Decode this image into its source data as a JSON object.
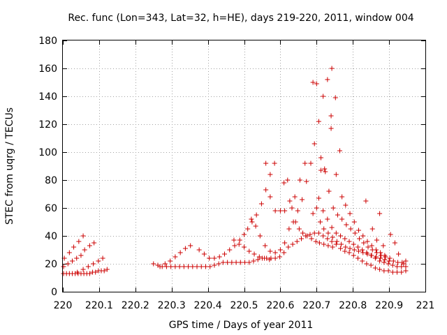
{
  "chart_data": {
    "type": "scatter",
    "title": "Rec. func (Lon=343, Lat=32, h=HE), days 219-220, 2011, window 004",
    "xlabel": "GPS time / Days of year 2011",
    "ylabel": "STEC from uqrg / TECUs",
    "xlim": [
      220,
      221
    ],
    "ylim": [
      0,
      180
    ],
    "x_ticks": [
      220,
      220.1,
      220.2,
      220.3,
      220.4,
      220.5,
      220.6,
      220.7,
      220.8,
      220.9,
      221
    ],
    "x_tick_labels": [
      "220",
      "220.1",
      "220.2",
      "220.3",
      "220.4",
      "220.5",
      "220.6",
      "220.7",
      "220.8",
      "220.9",
      "221"
    ],
    "y_ticks": [
      0,
      20,
      40,
      60,
      80,
      100,
      120,
      140,
      160,
      180
    ],
    "y_tick_labels": [
      "0",
      "20",
      "40",
      "60",
      "80",
      "100",
      "120",
      "140",
      "160",
      "180"
    ],
    "grid": true,
    "marker": "plus",
    "color": "#cc0000",
    "points": [
      [
        220.002,
        13
      ],
      [
        220.01,
        13
      ],
      [
        220.018,
        13
      ],
      [
        220.026,
        13
      ],
      [
        220.034,
        13
      ],
      [
        220.042,
        13
      ],
      [
        220.05,
        13
      ],
      [
        220.058,
        13
      ],
      [
        220.066,
        13
      ],
      [
        220.074,
        13
      ],
      [
        220.082,
        14
      ],
      [
        220.09,
        14
      ],
      [
        220.098,
        15
      ],
      [
        220.106,
        15
      ],
      [
        220.114,
        15
      ],
      [
        220.122,
        16
      ],
      [
        220.002,
        18
      ],
      [
        220.014,
        20
      ],
      [
        220.026,
        22
      ],
      [
        220.038,
        24
      ],
      [
        220.05,
        26
      ],
      [
        220.06,
        30
      ],
      [
        220.074,
        33
      ],
      [
        220.086,
        35
      ],
      [
        220.004,
        24
      ],
      [
        220.018,
        28
      ],
      [
        220.03,
        32
      ],
      [
        220.044,
        36
      ],
      [
        220.056,
        40
      ],
      [
        220.04,
        14
      ],
      [
        220.056,
        16
      ],
      [
        220.07,
        18
      ],
      [
        220.084,
        20
      ],
      [
        220.098,
        22
      ],
      [
        220.11,
        24
      ],
      [
        220.25,
        20
      ],
      [
        220.262,
        19
      ],
      [
        220.274,
        18
      ],
      [
        220.286,
        18
      ],
      [
        220.298,
        18
      ],
      [
        220.31,
        18
      ],
      [
        220.322,
        18
      ],
      [
        220.334,
        18
      ],
      [
        220.346,
        18
      ],
      [
        220.358,
        18
      ],
      [
        220.37,
        18
      ],
      [
        220.382,
        18
      ],
      [
        220.394,
        18
      ],
      [
        220.406,
        18
      ],
      [
        220.418,
        19
      ],
      [
        220.43,
        20
      ],
      [
        220.442,
        21
      ],
      [
        220.454,
        21
      ],
      [
        220.466,
        21
      ],
      [
        220.478,
        21
      ],
      [
        220.49,
        21
      ],
      [
        220.502,
        21
      ],
      [
        220.514,
        21
      ],
      [
        220.526,
        22
      ],
      [
        220.538,
        23
      ],
      [
        220.55,
        24
      ],
      [
        220.562,
        24
      ],
      [
        220.574,
        24
      ],
      [
        220.586,
        24
      ],
      [
        220.598,
        25
      ],
      [
        220.61,
        28
      ],
      [
        220.622,
        32
      ],
      [
        220.634,
        34
      ],
      [
        220.646,
        36
      ],
      [
        220.658,
        38
      ],
      [
        220.67,
        40
      ],
      [
        220.682,
        41
      ],
      [
        220.694,
        42
      ],
      [
        220.706,
        42
      ],
      [
        220.718,
        40
      ],
      [
        220.73,
        38
      ],
      [
        220.742,
        36
      ],
      [
        220.754,
        34
      ],
      [
        220.766,
        31
      ],
      [
        220.778,
        29
      ],
      [
        220.79,
        28
      ],
      [
        220.802,
        26
      ],
      [
        220.814,
        24
      ],
      [
        220.826,
        22
      ],
      [
        220.838,
        20
      ],
      [
        220.85,
        19
      ],
      [
        220.862,
        17
      ],
      [
        220.874,
        16
      ],
      [
        220.886,
        15
      ],
      [
        220.898,
        15
      ],
      [
        220.91,
        14
      ],
      [
        220.922,
        14
      ],
      [
        220.934,
        14
      ],
      [
        220.946,
        15
      ],
      [
        220.268,
        18
      ],
      [
        220.282,
        20
      ],
      [
        220.296,
        22
      ],
      [
        220.31,
        25
      ],
      [
        220.324,
        28
      ],
      [
        220.338,
        31
      ],
      [
        220.352,
        33
      ],
      [
        220.376,
        30
      ],
      [
        220.39,
        27
      ],
      [
        220.404,
        24
      ],
      [
        220.418,
        24
      ],
      [
        220.432,
        25
      ],
      [
        220.446,
        27
      ],
      [
        220.46,
        30
      ],
      [
        220.474,
        33
      ],
      [
        220.488,
        37
      ],
      [
        220.5,
        41
      ],
      [
        220.51,
        45
      ],
      [
        220.522,
        50
      ],
      [
        220.534,
        55
      ],
      [
        220.548,
        63
      ],
      [
        220.56,
        73
      ],
      [
        220.572,
        84
      ],
      [
        220.584,
        92
      ],
      [
        220.472,
        37
      ],
      [
        220.486,
        34
      ],
      [
        220.5,
        32
      ],
      [
        220.514,
        29
      ],
      [
        220.528,
        27
      ],
      [
        220.542,
        25
      ],
      [
        220.556,
        24
      ],
      [
        220.57,
        23
      ],
      [
        220.52,
        52
      ],
      [
        220.532,
        47
      ],
      [
        220.544,
        40
      ],
      [
        220.558,
        33
      ],
      [
        220.572,
        29
      ],
      [
        220.586,
        28
      ],
      [
        220.6,
        30
      ],
      [
        220.612,
        35
      ],
      [
        220.624,
        45
      ],
      [
        220.636,
        50
      ],
      [
        220.648,
        58
      ],
      [
        220.66,
        66
      ],
      [
        220.672,
        79
      ],
      [
        220.684,
        92
      ],
      [
        220.694,
        106
      ],
      [
        220.706,
        122
      ],
      [
        220.718,
        140
      ],
      [
        220.73,
        152
      ],
      [
        220.742,
        160
      ],
      [
        220.56,
        92
      ],
      [
        220.572,
        68
      ],
      [
        220.586,
        58
      ],
      [
        220.6,
        58
      ],
      [
        220.612,
        58
      ],
      [
        220.626,
        65
      ],
      [
        220.64,
        68
      ],
      [
        220.654,
        80
      ],
      [
        220.668,
        92
      ],
      [
        220.61,
        78
      ],
      [
        220.62,
        80
      ],
      [
        220.632,
        60
      ],
      [
        220.642,
        50
      ],
      [
        220.652,
        45
      ],
      [
        220.662,
        42
      ],
      [
        220.674,
        40
      ],
      [
        220.686,
        38
      ],
      [
        220.698,
        36
      ],
      [
        220.708,
        35
      ],
      [
        220.72,
        34
      ],
      [
        220.732,
        33
      ],
      [
        220.744,
        32
      ],
      [
        220.69,
        150
      ],
      [
        220.7,
        149
      ],
      [
        220.712,
        96
      ],
      [
        220.722,
        88
      ],
      [
        220.734,
        72
      ],
      [
        220.746,
        60
      ],
      [
        220.758,
        55
      ],
      [
        220.77,
        52
      ],
      [
        220.782,
        48
      ],
      [
        220.794,
        45
      ],
      [
        220.806,
        42
      ],
      [
        220.818,
        38
      ],
      [
        220.83,
        35
      ],
      [
        220.842,
        32
      ],
      [
        220.854,
        30
      ],
      [
        220.866,
        28
      ],
      [
        220.878,
        26
      ],
      [
        220.89,
        25
      ],
      [
        220.902,
        24
      ],
      [
        220.74,
        126
      ],
      [
        220.74,
        117
      ],
      [
        220.752,
        139
      ],
      [
        220.764,
        101
      ],
      [
        220.754,
        84
      ],
      [
        220.734,
        72
      ],
      [
        220.77,
        68
      ],
      [
        220.78,
        62
      ],
      [
        220.792,
        56
      ],
      [
        220.804,
        50
      ],
      [
        220.816,
        44
      ],
      [
        220.828,
        40
      ],
      [
        220.84,
        36
      ],
      [
        220.852,
        33
      ],
      [
        220.864,
        30
      ],
      [
        220.876,
        28
      ],
      [
        220.888,
        26
      ],
      [
        220.712,
        87
      ],
      [
        220.724,
        86
      ],
      [
        220.706,
        67
      ],
      [
        220.718,
        58
      ],
      [
        220.73,
        52
      ],
      [
        220.742,
        46
      ],
      [
        220.754,
        42
      ],
      [
        220.766,
        40
      ],
      [
        220.778,
        38
      ],
      [
        220.79,
        36
      ],
      [
        220.802,
        34
      ],
      [
        220.814,
        32
      ],
      [
        220.826,
        30
      ],
      [
        220.838,
        28
      ],
      [
        220.85,
        26
      ],
      [
        220.862,
        24
      ],
      [
        220.874,
        22
      ],
      [
        220.886,
        21
      ],
      [
        220.898,
        20
      ],
      [
        220.91,
        19
      ],
      [
        220.922,
        18
      ],
      [
        220.934,
        18
      ],
      [
        220.946,
        18
      ],
      [
        220.69,
        56
      ],
      [
        220.7,
        60
      ],
      [
        220.71,
        50
      ],
      [
        220.72,
        45
      ],
      [
        220.732,
        42
      ],
      [
        220.744,
        39
      ],
      [
        220.756,
        36
      ],
      [
        220.768,
        34
      ],
      [
        220.78,
        32
      ],
      [
        220.792,
        31
      ],
      [
        220.804,
        30
      ],
      [
        220.816,
        29
      ],
      [
        220.828,
        28
      ],
      [
        220.84,
        27
      ],
      [
        220.852,
        26
      ],
      [
        220.864,
        25
      ],
      [
        220.876,
        24
      ],
      [
        220.888,
        23
      ],
      [
        220.9,
        22
      ],
      [
        220.912,
        22
      ],
      [
        220.924,
        21
      ],
      [
        220.936,
        21
      ],
      [
        220.946,
        22
      ],
      [
        220.836,
        65
      ],
      [
        220.874,
        56
      ],
      [
        220.904,
        41
      ],
      [
        220.916,
        35
      ],
      [
        220.926,
        27
      ],
      [
        220.94,
        20
      ],
      [
        220.946,
        15
      ],
      [
        220.854,
        45
      ],
      [
        220.866,
        37
      ],
      [
        220.884,
        33
      ]
    ]
  }
}
